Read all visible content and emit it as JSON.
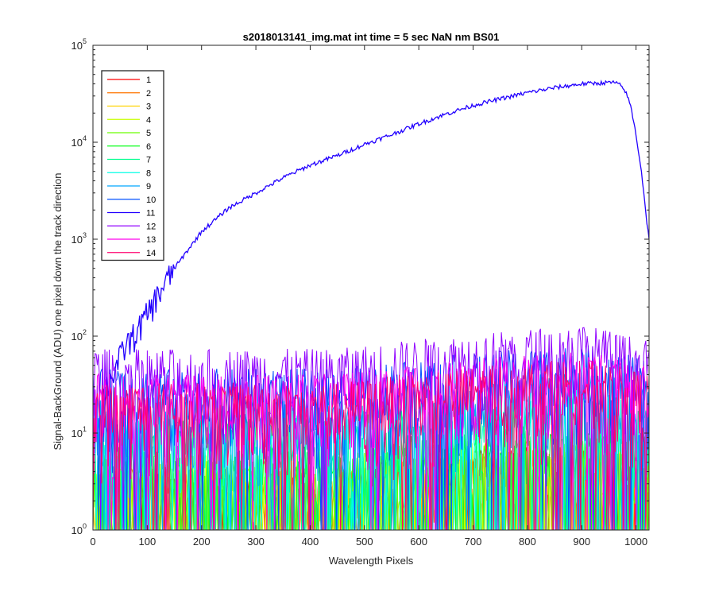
{
  "chart_data": {
    "type": "line",
    "title": "s2018013141_img.mat int time = 5 sec  NaN nm BS01",
    "xlabel": "Wavelength Pixels",
    "ylabel": "Signal-BackGround (ADU) one pixel down the track direction",
    "xlim": [
      0,
      1024
    ],
    "ylim": [
      1,
      100000
    ],
    "yscale": "log",
    "xticks": [
      0,
      100,
      200,
      300,
      400,
      500,
      600,
      700,
      800,
      900,
      1000
    ],
    "yticks": [
      {
        "value": 1,
        "base": "10",
        "exp": "0"
      },
      {
        "value": 10,
        "base": "10",
        "exp": "1"
      },
      {
        "value": 100,
        "base": "10",
        "exp": "2"
      },
      {
        "value": 1000,
        "base": "10",
        "exp": "3"
      },
      {
        "value": 10000,
        "base": "10",
        "exp": "4"
      },
      {
        "value": 100000,
        "base": "10",
        "exp": "5"
      }
    ],
    "grid": false,
    "legend_position": "top-left",
    "series": [
      {
        "name": "1",
        "color": "#ff0000",
        "level": 3,
        "noise": "low"
      },
      {
        "name": "2",
        "color": "#ff7400",
        "level": 3,
        "noise": "low"
      },
      {
        "name": "3",
        "color": "#ffd200",
        "level": 3,
        "noise": "low"
      },
      {
        "name": "4",
        "color": "#c8ff00",
        "level": 4,
        "noise": "low"
      },
      {
        "name": "5",
        "color": "#6aff00",
        "level": 4,
        "noise": "low"
      },
      {
        "name": "6",
        "color": "#0fff20",
        "level": 5,
        "noise": "low"
      },
      {
        "name": "7",
        "color": "#00ff8e",
        "level": 8,
        "noise": "medium"
      },
      {
        "name": "8",
        "color": "#00ffe6",
        "level": 10,
        "noise": "medium"
      },
      {
        "name": "9",
        "color": "#00a8ff",
        "level": 14,
        "noise": "medium"
      },
      {
        "name": "10",
        "color": "#0050ff",
        "level": 25,
        "noise": "high"
      },
      {
        "name": "11",
        "color": "#2200ff",
        "level": null,
        "noise": "signal",
        "profile_x": [
          18,
          30,
          40,
          50,
          60,
          80,
          100,
          120,
          150,
          200,
          250,
          300,
          350,
          400,
          450,
          500,
          550,
          600,
          650,
          700,
          750,
          800,
          850,
          900,
          940,
          960,
          970,
          980,
          990,
          1000,
          1010,
          1020,
          1024
        ],
        "profile_y": [
          25,
          35,
          45,
          60,
          80,
          110,
          170,
          270,
          500,
          1200,
          2100,
          3000,
          4300,
          5800,
          7300,
          9500,
          12000,
          15500,
          19500,
          24000,
          28000,
          32500,
          36500,
          40000,
          41000,
          41500,
          39000,
          34000,
          24000,
          12000,
          5000,
          1500,
          1000
        ]
      },
      {
        "name": "12",
        "color": "#9000ff",
        "level": 40,
        "noise": "high"
      },
      {
        "name": "13",
        "color": "#ff00ee",
        "level": 22,
        "noise": "high"
      },
      {
        "name": "14",
        "color": "#ff006e",
        "level": 18,
        "noise": "high"
      }
    ]
  }
}
